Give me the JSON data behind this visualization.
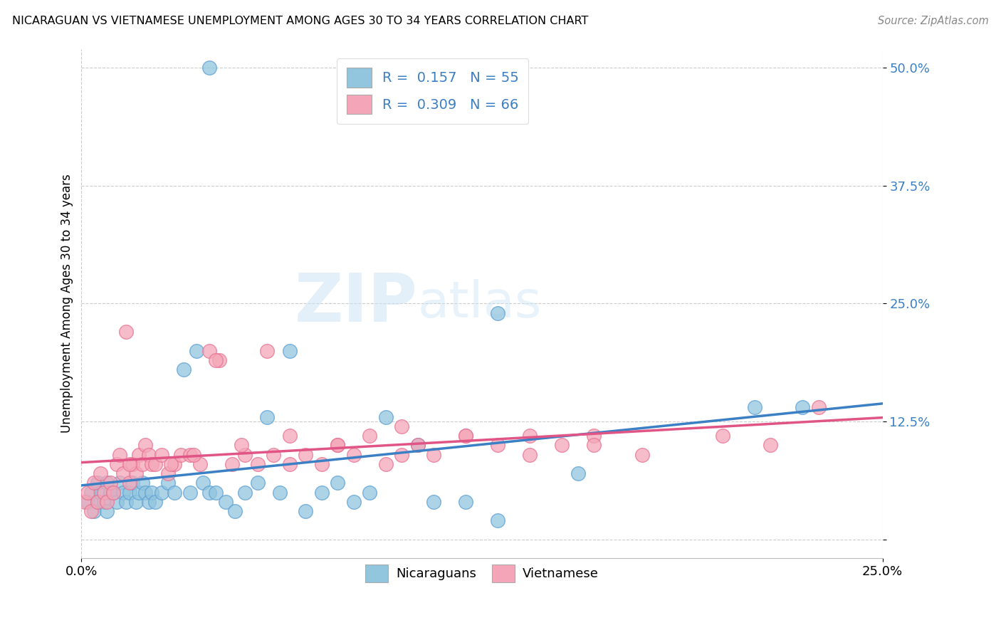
{
  "title": "NICARAGUAN VS VIETNAMESE UNEMPLOYMENT AMONG AGES 30 TO 34 YEARS CORRELATION CHART",
  "source": "Source: ZipAtlas.com",
  "ylabel_label": "Unemployment Among Ages 30 to 34 years",
  "xlim": [
    0.0,
    0.25
  ],
  "ylim": [
    -0.02,
    0.52
  ],
  "yticks": [
    0.0,
    0.125,
    0.25,
    0.375,
    0.5
  ],
  "ytick_labels": [
    "",
    "12.5%",
    "25.0%",
    "37.5%",
    "50.0%"
  ],
  "xticks": [
    0.0,
    0.25
  ],
  "xtick_labels": [
    "0.0%",
    "25.0%"
  ],
  "legend_entry1": "R =  0.157   N = 55",
  "legend_entry2": "R =  0.309   N = 66",
  "blue_color": "#92c5de",
  "pink_color": "#f4a6b8",
  "blue_line_color": "#3b7fc4",
  "pink_line_color": "#e05585",
  "blue_edge_color": "#5a9fd4",
  "pink_edge_color": "#e87090",
  "watermark_zip": "ZIP",
  "watermark_atlas": "atlas",
  "blue_x": [
    0.002,
    0.003,
    0.004,
    0.005,
    0.005,
    0.006,
    0.007,
    0.008,
    0.008,
    0.009,
    0.01,
    0.011,
    0.012,
    0.013,
    0.014,
    0.015,
    0.016,
    0.017,
    0.018,
    0.019,
    0.02,
    0.021,
    0.022,
    0.023,
    0.025,
    0.027,
    0.029,
    0.032,
    0.034,
    0.036,
    0.038,
    0.04,
    0.042,
    0.045,
    0.048,
    0.051,
    0.055,
    0.058,
    0.062,
    0.065,
    0.07,
    0.075,
    0.08,
    0.085,
    0.09,
    0.095,
    0.105,
    0.11,
    0.12,
    0.13,
    0.04,
    0.13,
    0.155,
    0.21,
    0.225
  ],
  "blue_y": [
    0.04,
    0.05,
    0.03,
    0.06,
    0.04,
    0.05,
    0.04,
    0.06,
    0.03,
    0.05,
    0.05,
    0.04,
    0.06,
    0.05,
    0.04,
    0.05,
    0.06,
    0.04,
    0.05,
    0.06,
    0.05,
    0.04,
    0.05,
    0.04,
    0.05,
    0.06,
    0.05,
    0.18,
    0.05,
    0.2,
    0.06,
    0.05,
    0.05,
    0.04,
    0.03,
    0.05,
    0.06,
    0.13,
    0.05,
    0.2,
    0.03,
    0.05,
    0.06,
    0.04,
    0.05,
    0.13,
    0.1,
    0.04,
    0.04,
    0.02,
    0.5,
    0.24,
    0.07,
    0.14,
    0.14
  ],
  "pink_x": [
    0.001,
    0.002,
    0.003,
    0.004,
    0.005,
    0.006,
    0.007,
    0.008,
    0.009,
    0.01,
    0.011,
    0.012,
    0.013,
    0.014,
    0.015,
    0.016,
    0.017,
    0.018,
    0.019,
    0.02,
    0.021,
    0.022,
    0.023,
    0.025,
    0.027,
    0.029,
    0.031,
    0.034,
    0.037,
    0.04,
    0.043,
    0.047,
    0.051,
    0.055,
    0.06,
    0.065,
    0.07,
    0.075,
    0.08,
    0.085,
    0.09,
    0.095,
    0.1,
    0.105,
    0.11,
    0.12,
    0.13,
    0.14,
    0.15,
    0.16,
    0.015,
    0.028,
    0.035,
    0.042,
    0.05,
    0.058,
    0.065,
    0.08,
    0.1,
    0.12,
    0.14,
    0.16,
    0.175,
    0.2,
    0.215,
    0.23
  ],
  "pink_y": [
    0.04,
    0.05,
    0.03,
    0.06,
    0.04,
    0.07,
    0.05,
    0.04,
    0.06,
    0.05,
    0.08,
    0.09,
    0.07,
    0.22,
    0.06,
    0.08,
    0.07,
    0.09,
    0.08,
    0.1,
    0.09,
    0.08,
    0.08,
    0.09,
    0.07,
    0.08,
    0.09,
    0.09,
    0.08,
    0.2,
    0.19,
    0.08,
    0.09,
    0.08,
    0.09,
    0.08,
    0.09,
    0.08,
    0.1,
    0.09,
    0.11,
    0.08,
    0.09,
    0.1,
    0.09,
    0.11,
    0.1,
    0.09,
    0.1,
    0.11,
    0.08,
    0.08,
    0.09,
    0.19,
    0.1,
    0.2,
    0.11,
    0.1,
    0.12,
    0.11,
    0.11,
    0.1,
    0.09,
    0.11,
    0.1,
    0.14
  ],
  "grid_color": "#cccccc",
  "grid_style": "--",
  "spine_color": "#bbbbbb"
}
